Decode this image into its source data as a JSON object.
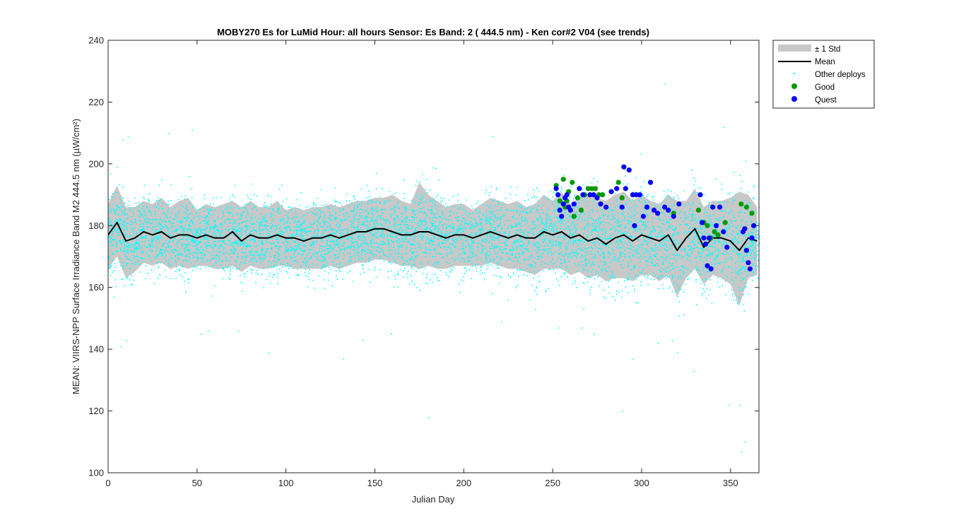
{
  "chart_data": {
    "type": "scatter",
    "title": "MOBY270   Es for LuMid  Hour: all hours  Sensor: Es Band: 2 ( 444.5 nm)  - Ken cor#2 V04 (see trends)",
    "xlabel": "Julian Day",
    "ylabel": "MEAN: VIIRS-NPP Surface Irradiance Band M2 444.5 nm (µW/cm²)",
    "xlim": [
      0,
      366
    ],
    "ylim": [
      100,
      240
    ],
    "xticks": [
      "0",
      "50",
      "100",
      "150",
      "200",
      "250",
      "300",
      "350"
    ],
    "yticks": [
      "100",
      "120",
      "140",
      "160",
      "180",
      "200",
      "220",
      "240"
    ],
    "legend_position": "outside-top-right",
    "legend": [
      "± 1 Std",
      "Mean",
      "Other deploys",
      "Good",
      "Quest"
    ],
    "colors": {
      "band": "#c8c8c8",
      "mean": "#000000",
      "other": "#00ffff",
      "good": "#009900",
      "quest": "#0000ff"
    },
    "mean": {
      "x": [
        0,
        5,
        10,
        15,
        20,
        25,
        30,
        35,
        40,
        45,
        50,
        55,
        60,
        65,
        70,
        75,
        80,
        85,
        90,
        95,
        100,
        105,
        110,
        115,
        120,
        125,
        130,
        135,
        140,
        145,
        150,
        155,
        160,
        165,
        170,
        175,
        180,
        185,
        190,
        195,
        200,
        205,
        210,
        215,
        220,
        225,
        230,
        235,
        240,
        245,
        250,
        255,
        260,
        265,
        270,
        275,
        280,
        285,
        290,
        295,
        300,
        305,
        310,
        315,
        320,
        325,
        330,
        335,
        340,
        345,
        350,
        355,
        360,
        365
      ],
      "y": [
        177,
        181,
        175,
        176,
        178,
        177,
        178,
        176,
        177,
        177,
        176,
        177,
        176,
        176,
        178,
        175,
        177,
        176,
        176,
        177,
        176,
        176,
        175,
        176,
        176,
        177,
        176,
        177,
        178,
        178,
        179,
        179,
        178,
        177,
        177,
        178,
        178,
        177,
        176,
        177,
        177,
        176,
        177,
        178,
        177,
        176,
        177,
        176,
        176,
        178,
        177,
        178,
        176,
        177,
        175,
        176,
        174,
        176,
        177,
        175,
        177,
        176,
        175,
        177,
        172,
        176,
        179,
        173,
        176,
        176,
        175,
        172,
        176,
        175
      ]
    },
    "band_std": {
      "upper": [
        187,
        193,
        186,
        186,
        188,
        187,
        189,
        186,
        188,
        189,
        185,
        187,
        186,
        187,
        188,
        186,
        188,
        186,
        186,
        188,
        185,
        186,
        185,
        186,
        186,
        187,
        186,
        187,
        188,
        188,
        189,
        189,
        190,
        188,
        187,
        194,
        190,
        188,
        186,
        187,
        187,
        185,
        187,
        189,
        188,
        187,
        188,
        186,
        187,
        190,
        188,
        191,
        187,
        189,
        190,
        189,
        188,
        190,
        191,
        188,
        190,
        188,
        187,
        190,
        188,
        188,
        192,
        186,
        188,
        188,
        189,
        191,
        190,
        186
      ],
      "lower": [
        166,
        170,
        163,
        165,
        168,
        167,
        168,
        166,
        167,
        166,
        167,
        167,
        166,
        166,
        167,
        165,
        167,
        166,
        166,
        167,
        167,
        166,
        166,
        166,
        166,
        167,
        166,
        167,
        168,
        168,
        169,
        169,
        168,
        167,
        167,
        166,
        167,
        166,
        166,
        167,
        167,
        167,
        167,
        168,
        167,
        166,
        166,
        165,
        164,
        166,
        166,
        166,
        164,
        165,
        163,
        164,
        162,
        163,
        163,
        162,
        164,
        164,
        162,
        164,
        157,
        163,
        166,
        161,
        164,
        163,
        161,
        154,
        163,
        164
      ]
    },
    "other_deploys": {
      "note": "dense cloud of points (thousands) centered on mean with spread ~ ±10 µW/cm², outliers 105-227",
      "outliers": [
        [
          1,
          197
        ],
        [
          5,
          199
        ],
        [
          8,
          208
        ],
        [
          11,
          209
        ],
        [
          3,
          157
        ],
        [
          7,
          141
        ],
        [
          10,
          143
        ],
        [
          34,
          210
        ],
        [
          47,
          211
        ],
        [
          52,
          145
        ],
        [
          56,
          146
        ],
        [
          73,
          146
        ],
        [
          90,
          139
        ],
        [
          132,
          137
        ],
        [
          143,
          143
        ],
        [
          159,
          145
        ],
        [
          180,
          118
        ],
        [
          216,
          209
        ],
        [
          221,
          149
        ],
        [
          237,
          156
        ],
        [
          240,
          153
        ],
        [
          253,
          147
        ],
        [
          266,
          147
        ],
        [
          273,
          145
        ],
        [
          289,
          120
        ],
        [
          295,
          137
        ],
        [
          309,
          142
        ],
        [
          317,
          143
        ],
        [
          320,
          139
        ],
        [
          329,
          133
        ],
        [
          346,
          212
        ],
        [
          349,
          122
        ],
        [
          355,
          122
        ],
        [
          356,
          107
        ],
        [
          358,
          110
        ],
        [
          313,
          226
        ]
      ]
    },
    "good": {
      "x": [
        252,
        254,
        256,
        257,
        258,
        259,
        261,
        262,
        264,
        266,
        268,
        270,
        272,
        274,
        276,
        278,
        287,
        289,
        318,
        332,
        335,
        337,
        339,
        341,
        343,
        347,
        356,
        359,
        362
      ],
      "y": [
        193,
        188,
        195,
        186,
        188,
        191,
        194,
        183,
        189,
        185,
        190,
        192,
        192,
        192,
        190,
        190,
        194,
        189,
        184,
        185,
        181,
        180,
        176,
        178,
        177,
        181,
        187,
        186,
        184
      ]
    },
    "quest": {
      "x": [
        252,
        253,
        254,
        255,
        256,
        257,
        258,
        259,
        260,
        262,
        265,
        267,
        271,
        273,
        275,
        277,
        280,
        283,
        286,
        289,
        290,
        291,
        293,
        295,
        296,
        297,
        299,
        301,
        303,
        305,
        307,
        309,
        313,
        315,
        318,
        321,
        333,
        334,
        335,
        336,
        337,
        338,
        339,
        340,
        342,
        344,
        346,
        348,
        357,
        358,
        359,
        360,
        361,
        362,
        363
      ],
      "y": [
        192,
        190,
        185,
        183,
        187,
        189,
        190,
        186,
        185,
        187,
        192,
        190,
        190,
        190,
        189,
        187,
        186,
        191,
        192,
        186,
        199,
        192,
        198,
        190,
        180,
        190,
        190,
        183,
        186,
        194,
        185,
        184,
        186,
        185,
        183,
        187,
        190,
        181,
        176,
        174,
        167,
        176,
        166,
        186,
        180,
        186,
        178,
        173,
        178,
        179,
        172,
        168,
        166,
        176,
        180
      ]
    }
  }
}
